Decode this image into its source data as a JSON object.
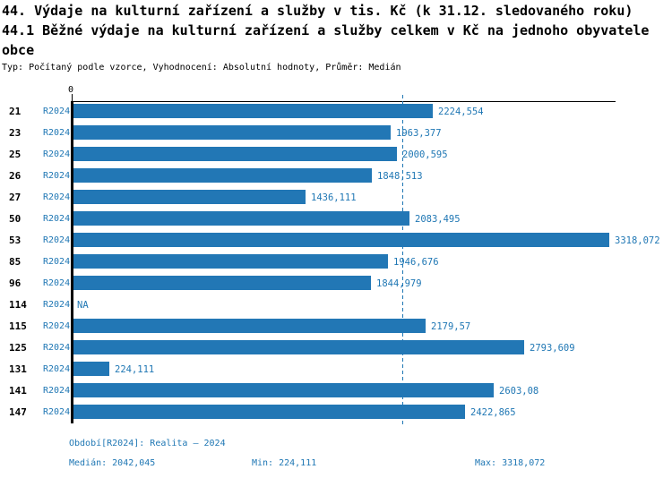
{
  "header": {
    "lines": [
      "44. Výdaje na kulturní zařízení a služby v tis. Kč (k 31.12. sledovaného roku)",
      "44.1 Běžné výdaje na kulturní zařízení a služby celkem v Kč na jednoho obyvatele",
      "obce"
    ],
    "meta": "Typ: Počítaný podle vzorce, Vyhodnocení: Absolutní hodnoty, Průměr: Medián"
  },
  "chart_data": {
    "type": "bar",
    "orientation": "horizontal",
    "title": "44. Výdaje na kulturní zařízení a služby v tis. Kč (k 31.12. sledovaného roku)",
    "subtitle": "44.1 Běžné výdaje na kulturní zařízení a služby celkem v Kč na jednoho obyvatele obce",
    "axis_origin_label": "0",
    "series_label": "R2024",
    "categories": [
      "21",
      "23",
      "25",
      "26",
      "27",
      "50",
      "53",
      "85",
      "96",
      "114",
      "115",
      "125",
      "131",
      "141",
      "147"
    ],
    "values": [
      2224.554,
      1963.377,
      2000.595,
      1848.513,
      1436.111,
      2083.495,
      3318.072,
      1946.676,
      1844.979,
      null,
      2179.57,
      2793.609,
      224.111,
      2603.08,
      2422.865
    ],
    "value_labels": [
      "2224,554",
      "1963,377",
      "2000,595",
      "1848,513",
      "1436,111",
      "2083,495",
      "3318,072",
      "1946,676",
      "1844,979",
      "NA",
      "2179,57",
      "2793,609",
      "224,111",
      "2603,08",
      "2422,865"
    ],
    "na_label": "NA",
    "median_value": 2042.045,
    "min_value": 224.111,
    "max_value": 3318.072,
    "xlim": [
      0,
      3357
    ],
    "grid": false,
    "legend": false,
    "median_reference_line": true,
    "bar_color": "#2277b5",
    "accent_color": "#1f77b4",
    "axis_color": "#000000"
  },
  "footer": {
    "period": "Období[R2024]: Realita – 2024",
    "median": "Medián: 2042,045",
    "min": "Min: 224,111",
    "max": "Max: 3318,072"
  }
}
